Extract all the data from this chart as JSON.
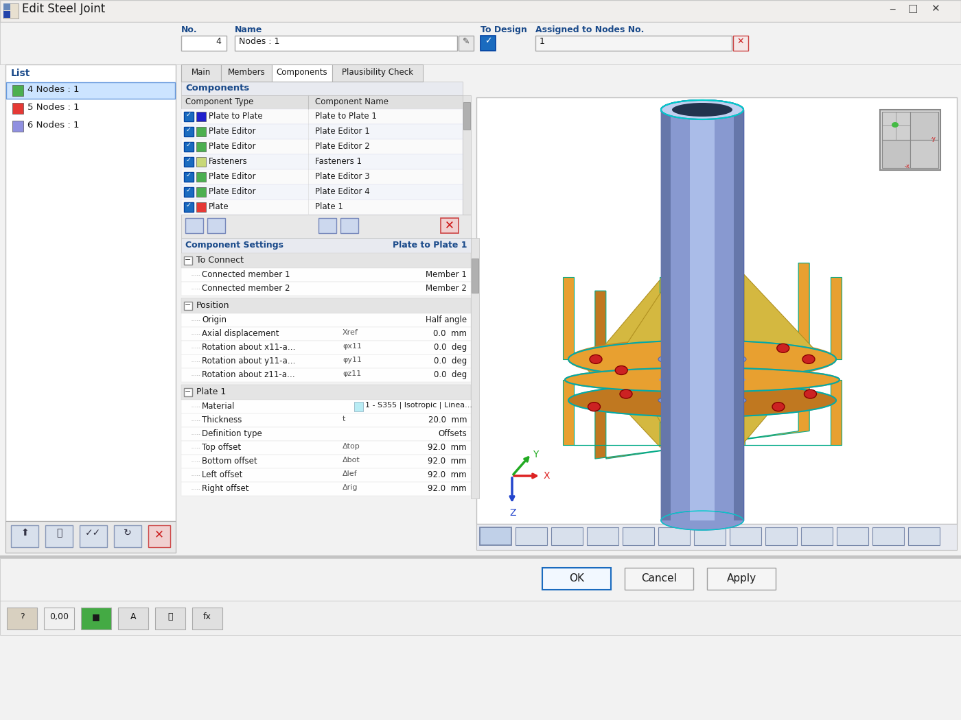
{
  "title": "Edit Steel Joint",
  "window_bg": "#f2f2f2",
  "titlebar_bg": "#f0f0f0",
  "panel_bg": "#ffffff",
  "list_items": [
    {
      "color": "#4caf50",
      "text": "4 Nodes : 1",
      "selected": true
    },
    {
      "color": "#e53935",
      "text": "5 Nodes : 1",
      "selected": false
    },
    {
      "color": "#9090e0",
      "text": "6 Nodes : 1",
      "selected": false
    }
  ],
  "no_value": "4",
  "name_value": "Nodes : 1",
  "tabs": [
    "Main",
    "Members",
    "Components",
    "Plausibility Check"
  ],
  "active_tab": "Components",
  "components_rows": [
    {
      "color": "#2020cc",
      "type": "Plate to Plate",
      "name": "Plate to Plate 1"
    },
    {
      "color": "#4caf50",
      "type": "Plate Editor",
      "name": "Plate Editor 1"
    },
    {
      "color": "#4caf50",
      "type": "Plate Editor",
      "name": "Plate Editor 2"
    },
    {
      "color": "#c8d878",
      "type": "Fasteners",
      "name": "Fasteners 1"
    },
    {
      "color": "#4caf50",
      "type": "Plate Editor",
      "name": "Plate Editor 3"
    },
    {
      "color": "#4caf50",
      "type": "Plate Editor",
      "name": "Plate Editor 4"
    },
    {
      "color": "#e53935",
      "type": "Plate",
      "name": "Plate 1"
    }
  ],
  "settings_sections": [
    {
      "name": "To Connect",
      "rows": [
        {
          "label": "Connected member 1",
          "sym": "",
          "value": "Member 1"
        },
        {
          "label": "Connected member 2",
          "sym": "",
          "value": "Member 2"
        }
      ]
    },
    {
      "name": "Position",
      "rows": [
        {
          "label": "Origin",
          "sym": "",
          "value": "Half angle"
        },
        {
          "label": "Axial displacement",
          "sym": "Xref",
          "value": "0.0  mm"
        },
        {
          "label": "Rotation about x11-a…",
          "sym": "φx11",
          "value": "0.0  deg"
        },
        {
          "label": "Rotation about y11-a…",
          "sym": "φy11",
          "value": "0.0  deg"
        },
        {
          "label": "Rotation about z11-a…",
          "sym": "φz11",
          "value": "0.0  deg"
        }
      ]
    },
    {
      "name": "Plate 1",
      "rows": [
        {
          "label": "Material",
          "sym": "",
          "value": "1 - S355 | Isotropic | Linea...",
          "material": true
        },
        {
          "label": "Thickness",
          "sym": "t",
          "value": "20.0  mm"
        },
        {
          "label": "Definition type",
          "sym": "",
          "value": "Offsets"
        },
        {
          "label": "Top offset",
          "sym": "Δtop",
          "value": "92.0  mm"
        },
        {
          "label": "Bottom offset",
          "sym": "Δbot",
          "value": "92.0  mm"
        },
        {
          "label": "Left offset",
          "sym": "Δlef",
          "value": "92.0  mm"
        },
        {
          "label": "Right offset",
          "sym": "Δrig",
          "value": "92.0  mm"
        }
      ]
    }
  ],
  "bottom_buttons": [
    "OK",
    "Cancel",
    "Apply"
  ],
  "tube_color": "#8899d0",
  "tube_highlight": "#aabce8",
  "tube_shadow": "#6677aa",
  "tube_top_color": "#c0d0f0",
  "flange_color": "#e8a030",
  "flange_dark": "#c07820",
  "stiff_color": "#d4b840",
  "bolt_color": "#cc2222",
  "rim_color": "#00aaaa",
  "vp_bg": "#ffffff"
}
